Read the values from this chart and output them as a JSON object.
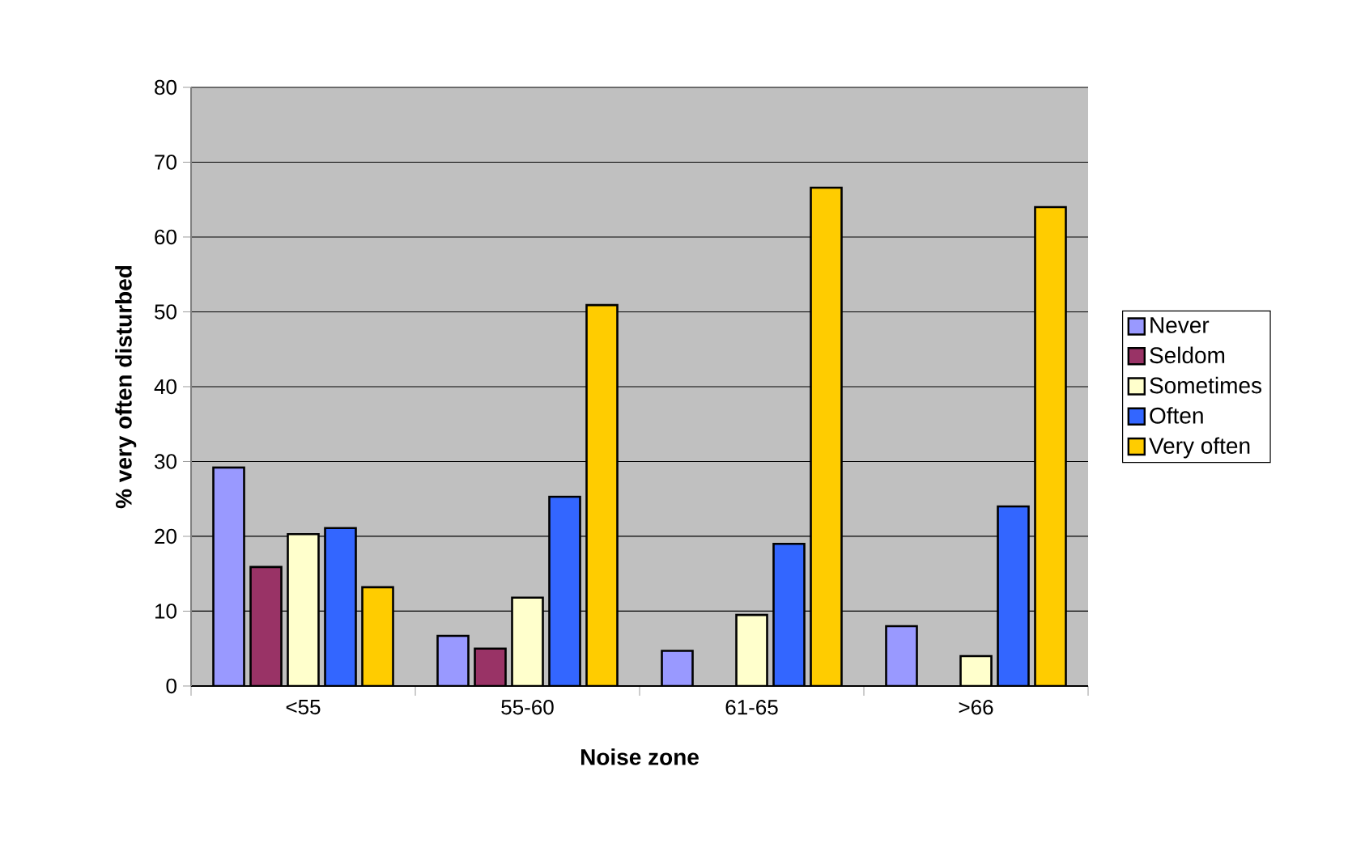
{
  "chart_data": {
    "type": "bar",
    "xlabel": "Noise zone",
    "ylabel": "%  very often disturbed",
    "categories": [
      "<55",
      "55-60",
      "61-65",
      ">66"
    ],
    "series": [
      {
        "name": "Never",
        "color": "#9999ff",
        "values": [
          29.2,
          6.7,
          4.7,
          8.0
        ]
      },
      {
        "name": "Seldom",
        "color": "#993366",
        "values": [
          15.9,
          5.0,
          null,
          null
        ]
      },
      {
        "name": "Sometimes",
        "color": "#ffffcc",
        "values": [
          20.3,
          11.8,
          9.5,
          4.0
        ]
      },
      {
        "name": "Often",
        "color": "#3366ff",
        "values": [
          21.1,
          25.3,
          19.0,
          24.0
        ]
      },
      {
        "name": "Very often",
        "color": "#ffcc00",
        "values": [
          13.2,
          50.9,
          66.6,
          64.0
        ]
      }
    ],
    "ylim": [
      0,
      80
    ],
    "yticks": [
      0,
      10,
      20,
      30,
      40,
      50,
      60,
      70,
      80
    ],
    "grid": "y",
    "legend": "right"
  }
}
